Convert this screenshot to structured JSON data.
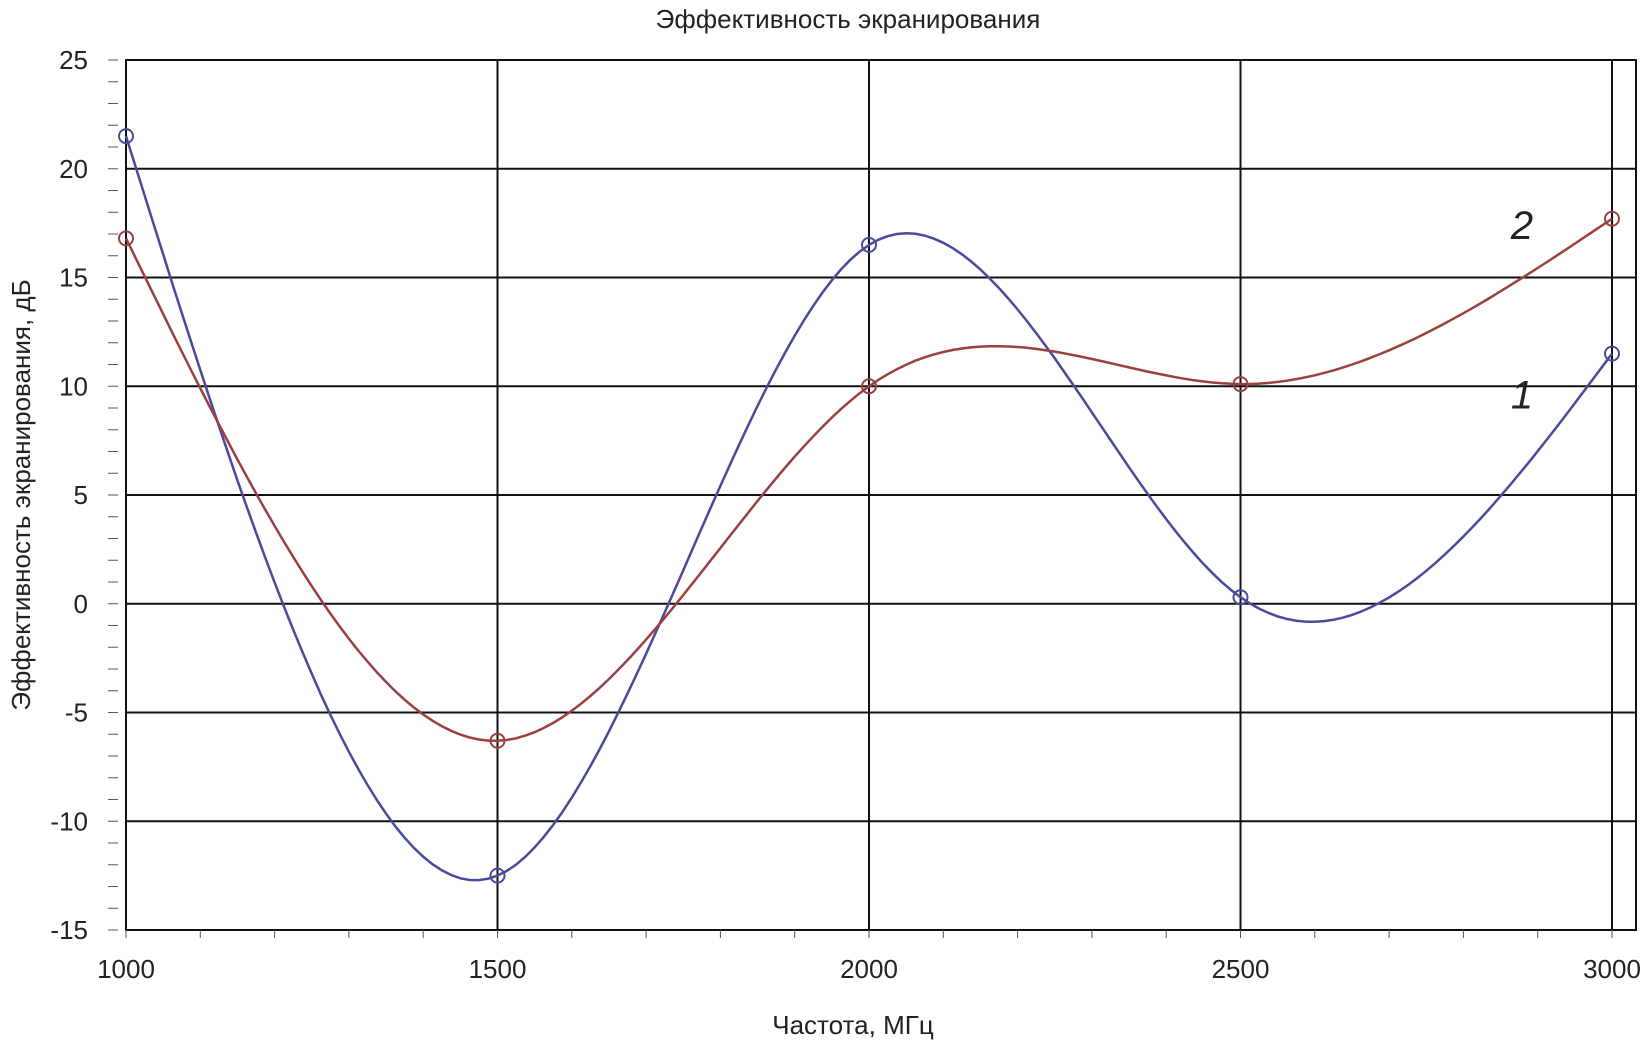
{
  "chart_data": {
    "type": "line",
    "title": "Эффективность экранирования",
    "xlabel": "Частота, МГц",
    "ylabel": "Эффективность экранирования, дБ",
    "xlim": [
      1000,
      3000
    ],
    "ylim": [
      -15,
      25
    ],
    "x_ticks": [
      1000,
      1500,
      2000,
      2500,
      3000
    ],
    "y_ticks": [
      -15,
      -10,
      -5,
      0,
      5,
      10,
      15,
      20,
      25
    ],
    "grid": true,
    "x": [
      1000,
      1500,
      2000,
      2500,
      3000
    ],
    "series": [
      {
        "name": "1",
        "color": "#4a4a9c",
        "values": [
          21.5,
          -12.5,
          16.5,
          0.3,
          11.5
        ]
      },
      {
        "name": "2",
        "color": "#9c3f3f",
        "values": [
          16.8,
          -6.3,
          10.0,
          10.1,
          17.7
        ]
      }
    ]
  }
}
